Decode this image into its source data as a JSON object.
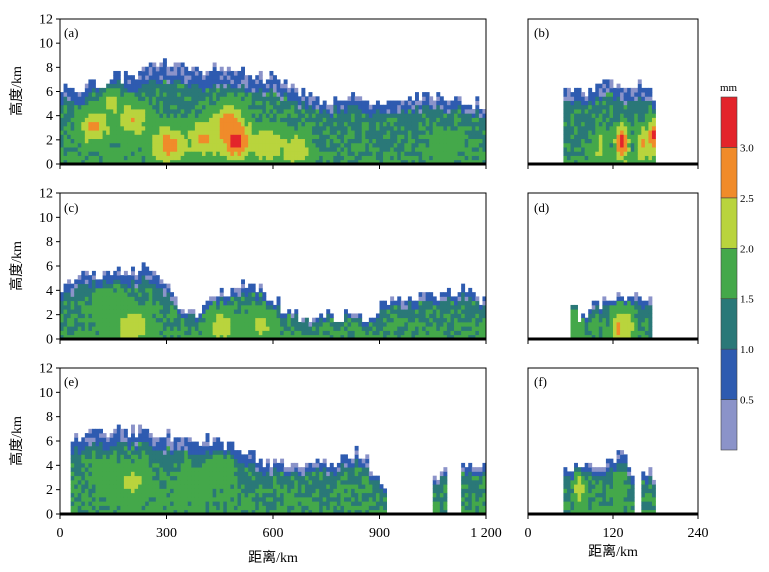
{
  "figure": {
    "ylabel": "高度/km",
    "xlabel": "距离/km",
    "colorbar": {
      "unit": "mm",
      "ticks": [
        "0.5",
        "1.0",
        "1.5",
        "2.0",
        "2.5",
        "3.0"
      ],
      "bins": [
        {
          "low": 0.0,
          "high": 0.5,
          "color": "#8b93c9"
        },
        {
          "low": 0.5,
          "high": 1.0,
          "color": "#2e5bb0"
        },
        {
          "low": 1.0,
          "high": 1.5,
          "color": "#2a7878"
        },
        {
          "low": 1.5,
          "high": 2.0,
          "color": "#44a84a"
        },
        {
          "low": 2.0,
          "high": 2.5,
          "color": "#b9d43d"
        },
        {
          "low": 2.5,
          "high": 3.0,
          "color": "#f08b2a"
        },
        {
          "low": 3.0,
          "high": 3.5,
          "color": "#e3242b"
        }
      ]
    }
  },
  "chart_data": [
    {
      "type": "heatmap",
      "panel": "(a)",
      "title": "(a)",
      "xlim": [
        0,
        1200
      ],
      "ylim": [
        0,
        12
      ],
      "ylabel": "高度/km",
      "xlabel": "",
      "yticks": [
        "0",
        "2",
        "4",
        "6",
        "8",
        "10",
        "12"
      ],
      "xticks": [],
      "top_profile": [
        [
          0,
          6.3
        ],
        [
          40,
          5.5
        ],
        [
          80,
          6.8
        ],
        [
          120,
          6.2
        ],
        [
          160,
          7.2
        ],
        [
          200,
          7.0
        ],
        [
          260,
          8.0
        ],
        [
          300,
          8.3
        ],
        [
          350,
          7.6
        ],
        [
          400,
          7.5
        ],
        [
          450,
          7.8
        ],
        [
          500,
          7.3
        ],
        [
          560,
          7.1
        ],
        [
          620,
          7.0
        ],
        [
          660,
          6.0
        ],
        [
          700,
          5.2
        ],
        [
          750,
          4.8
        ],
        [
          800,
          5.6
        ],
        [
          850,
          5.2
        ],
        [
          900,
          5.0
        ],
        [
          950,
          4.9
        ],
        [
          1000,
          5.3
        ],
        [
          1050,
          5.5
        ],
        [
          1100,
          5.2
        ],
        [
          1150,
          5.0
        ],
        [
          1200,
          4.8
        ]
      ],
      "hotspots": [
        [
          490,
          1.8,
          3.3
        ],
        [
          470,
          3.4,
          2.8
        ],
        [
          300,
          1.5,
          2.8
        ],
        [
          90,
          3.0,
          2.6
        ],
        [
          400,
          2.0,
          2.6
        ],
        [
          200,
          3.5,
          2.5
        ],
        [
          580,
          1.5,
          2.4
        ],
        [
          660,
          1.0,
          2.3
        ],
        [
          140,
          5.0,
          2.1
        ],
        [
          1080,
          1.5,
          1.8
        ]
      ]
    },
    {
      "type": "heatmap",
      "panel": "(b)",
      "title": "(b)",
      "xlim": [
        0,
        240
      ],
      "ylim": [
        0,
        12
      ],
      "ylabel": "",
      "xlabel": "",
      "yticks": [],
      "xticks": [],
      "top_profile": [
        [
          50,
          5.6
        ],
        [
          80,
          6.0
        ],
        [
          110,
          6.4
        ],
        [
          140,
          6.5
        ],
        [
          170,
          6.0
        ],
        [
          180,
          5.5
        ]
      ],
      "hotspots": [
        [
          130,
          1.7,
          3.3
        ],
        [
          175,
          2.2,
          3.1
        ],
        [
          160,
          1.5,
          2.6
        ],
        [
          100,
          1.2,
          2.2
        ]
      ]
    },
    {
      "type": "heatmap",
      "panel": "(c)",
      "title": "(c)",
      "xlim": [
        0,
        1200
      ],
      "ylim": [
        0,
        12
      ],
      "ylabel": "高度/km",
      "xlabel": "",
      "yticks": [
        "0",
        "2",
        "4",
        "6",
        "8",
        "10",
        "12"
      ],
      "xticks": [],
      "top_profile": [
        [
          0,
          4.2
        ],
        [
          50,
          5.0
        ],
        [
          100,
          5.3
        ],
        [
          150,
          5.5
        ],
        [
          200,
          5.6
        ],
        [
          250,
          5.5
        ],
        [
          300,
          4.2
        ],
        [
          350,
          2.2
        ],
        [
          400,
          1.9
        ],
        [
          440,
          3.5
        ],
        [
          500,
          4.2
        ],
        [
          560,
          4.0
        ],
        [
          620,
          2.6
        ],
        [
          680,
          1.3
        ],
        [
          760,
          1.9
        ],
        [
          840,
          1.6
        ],
        [
          880,
          1.6
        ],
        [
          920,
          3.0
        ],
        [
          980,
          3.2
        ],
        [
          1040,
          3.5
        ],
        [
          1100,
          3.8
        ],
        [
          1150,
          4.0
        ],
        [
          1200,
          2.8
        ]
      ],
      "hotspots": [
        [
          200,
          0.9,
          2.4
        ],
        [
          450,
          1.0,
          2.2
        ],
        [
          560,
          1.0,
          2.1
        ],
        [
          130,
          2.5,
          2.0
        ]
      ]
    },
    {
      "type": "heatmap",
      "panel": "(d)",
      "title": "(d)",
      "xlim": [
        0,
        240
      ],
      "ylim": [
        0,
        12
      ],
      "ylabel": "",
      "xlabel": "",
      "yticks": [],
      "xticks": [],
      "top_profile": [
        [
          60,
          3.2
        ],
        [
          70,
          1.8
        ],
        [
          90,
          2.4
        ],
        [
          110,
          3.0
        ],
        [
          130,
          3.4
        ],
        [
          150,
          3.0
        ],
        [
          175,
          3.0
        ]
      ],
      "hotspots": [
        [
          125,
          0.7,
          2.7
        ],
        [
          140,
          1.0,
          2.3
        ],
        [
          65,
          1.5,
          2.0
        ]
      ]
    },
    {
      "type": "heatmap",
      "panel": "(e)",
      "title": "(e)",
      "xlim": [
        0,
        1200
      ],
      "ylim": [
        0,
        12
      ],
      "ylabel": "高度/km",
      "xlabel": "距离/km",
      "yticks": [
        "0",
        "2",
        "4",
        "6",
        "8",
        "10",
        "12"
      ],
      "xticks": [
        "0",
        "300",
        "600",
        "900",
        "1 200"
      ],
      "top_profile": [
        [
          30,
          6.0
        ],
        [
          80,
          6.4
        ],
        [
          140,
          6.5
        ],
        [
          200,
          6.8
        ],
        [
          250,
          6.5
        ],
        [
          300,
          6.4
        ],
        [
          380,
          6.1
        ],
        [
          440,
          5.8
        ],
        [
          500,
          5.0
        ],
        [
          560,
          4.3
        ],
        [
          600,
          3.9
        ],
        [
          650,
          3.8
        ],
        [
          700,
          3.8
        ],
        [
          760,
          4.0
        ],
        [
          820,
          5.0
        ],
        [
          860,
          4.6
        ],
        [
          890,
          2.8
        ],
        [
          910,
          2.2
        ],
        [
          1040,
          2.6
        ],
        [
          1080,
          3.2
        ],
        [
          1130,
          4.0
        ],
        [
          1160,
          3.8
        ],
        [
          1200,
          3.5
        ]
      ],
      "gaps": [
        [
          920,
          1045
        ],
        [
          1085,
          1125
        ]
      ],
      "hotspots": [
        [
          200,
          2.5,
          2.2
        ],
        [
          130,
          3.0,
          2.0
        ],
        [
          450,
          3.5,
          1.9
        ],
        [
          360,
          2.5,
          1.9
        ]
      ]
    },
    {
      "type": "heatmap",
      "panel": "(f)",
      "title": "(f)",
      "xlim": [
        0,
        240
      ],
      "ylim": [
        0,
        12
      ],
      "ylabel": "",
      "xlabel": "距离/km",
      "yticks": [],
      "xticks": [
        "0",
        "120",
        "240"
      ],
      "top_profile": [
        [
          50,
          3.4
        ],
        [
          70,
          3.7
        ],
        [
          100,
          3.6
        ],
        [
          120,
          4.2
        ],
        [
          135,
          5.0
        ],
        [
          150,
          3.2
        ],
        [
          170,
          3.4
        ],
        [
          180,
          3.0
        ]
      ],
      "gaps": [
        [
          150,
          160
        ]
      ],
      "hotspots": [
        [
          70,
          2.0,
          2.3
        ],
        [
          125,
          2.0,
          1.9
        ]
      ]
    }
  ]
}
